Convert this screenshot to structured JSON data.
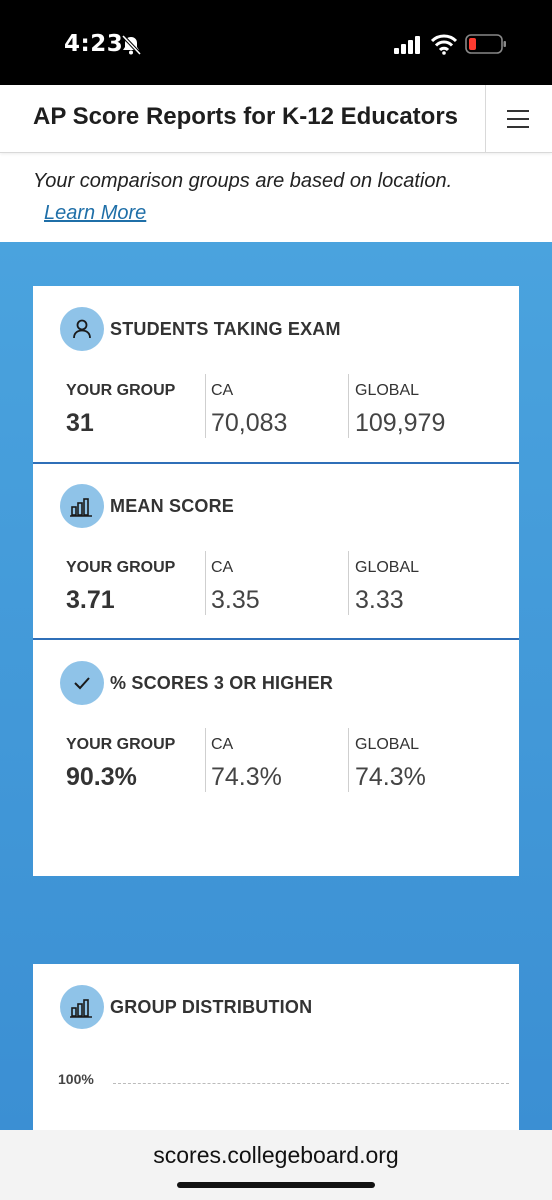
{
  "status_bar": {
    "time": "4:23"
  },
  "header": {
    "title": "AP Score Reports for K-12 Educators"
  },
  "info": {
    "text": "Your comparison groups are based on location.",
    "link": "Learn More"
  },
  "sections": [
    {
      "title": "STUDENTS TAKING EXAM",
      "icon": "person-icon",
      "labels": [
        "YOUR GROUP",
        "CA",
        "GLOBAL"
      ],
      "values": [
        "31",
        "70,083",
        "109,979"
      ]
    },
    {
      "title": "MEAN SCORE",
      "icon": "bar-chart-icon",
      "labels": [
        "YOUR GROUP",
        "CA",
        "GLOBAL"
      ],
      "values": [
        "3.71",
        "3.35",
        "3.33"
      ]
    },
    {
      "title": "% SCORES 3 OR HIGHER",
      "icon": "checkmark-icon",
      "labels": [
        "YOUR GROUP",
        "CA",
        "GLOBAL"
      ],
      "values": [
        "90.3%",
        "74.3%",
        "74.3%"
      ]
    }
  ],
  "distribution": {
    "title": "GROUP DISTRIBUTION",
    "icon": "bar-chart-icon",
    "axis_label": "100%"
  },
  "browser": {
    "url": "scores.collegeboard.org"
  },
  "colors": {
    "accent_blue": "#3b8fd3",
    "icon_circle": "#8fc3e8",
    "link": "#1f6fa8",
    "divider": "#2f6fb8"
  }
}
